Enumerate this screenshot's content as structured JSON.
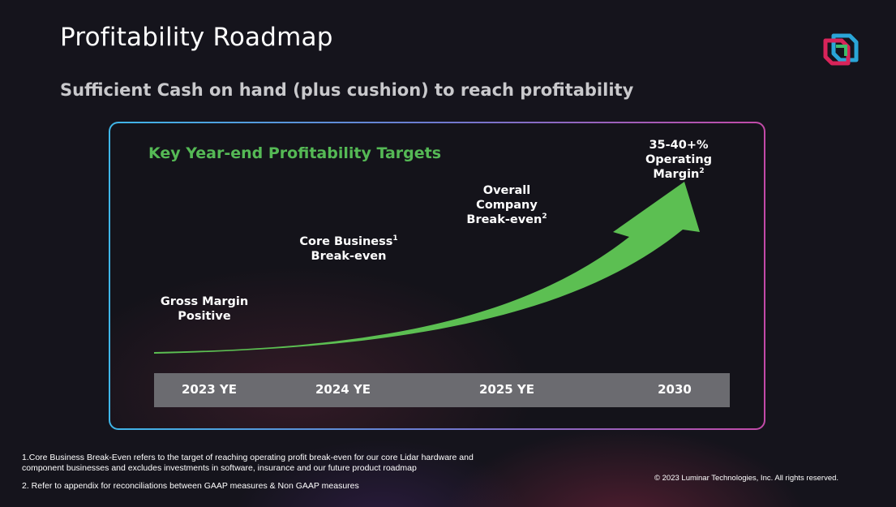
{
  "slide": {
    "title": "Profitability Roadmap",
    "subtitle": "Sufficient Cash on hand (plus cushion) to reach profitability",
    "logo_icon": "luminar-cube-logo-icon"
  },
  "roadmap": {
    "heading": "Key Year-end Profitability Targets",
    "heading_color": "#55b955",
    "arrow_color": "#5cbf52",
    "years": [
      "2023 YE",
      "2024 YE",
      "2025 YE",
      "2030"
    ],
    "milestones": [
      {
        "lines": [
          "Gross Margin",
          "Positive"
        ],
        "sup": ""
      },
      {
        "lines": [
          "Core Business",
          "Break-even"
        ],
        "sup": "1"
      },
      {
        "lines": [
          "Overall",
          "Company",
          "Break-even"
        ],
        "sup": "2"
      },
      {
        "lines": [
          "35-40+%",
          "Operating",
          "Margin"
        ],
        "sup": "2"
      }
    ]
  },
  "footnotes": {
    "note1_line1": "1.Core Business Break-Even refers to the target of reaching operating profit break-even for our core Lidar hardware and",
    "note1_line2": "component businesses and excludes investments in software, insurance and our future product roadmap",
    "note2": "2. Refer to appendix for reconciliations between GAAP measures & Non GAAP measures",
    "copyright": "© 2023 Luminar Technologies, Inc. All rights reserved."
  }
}
